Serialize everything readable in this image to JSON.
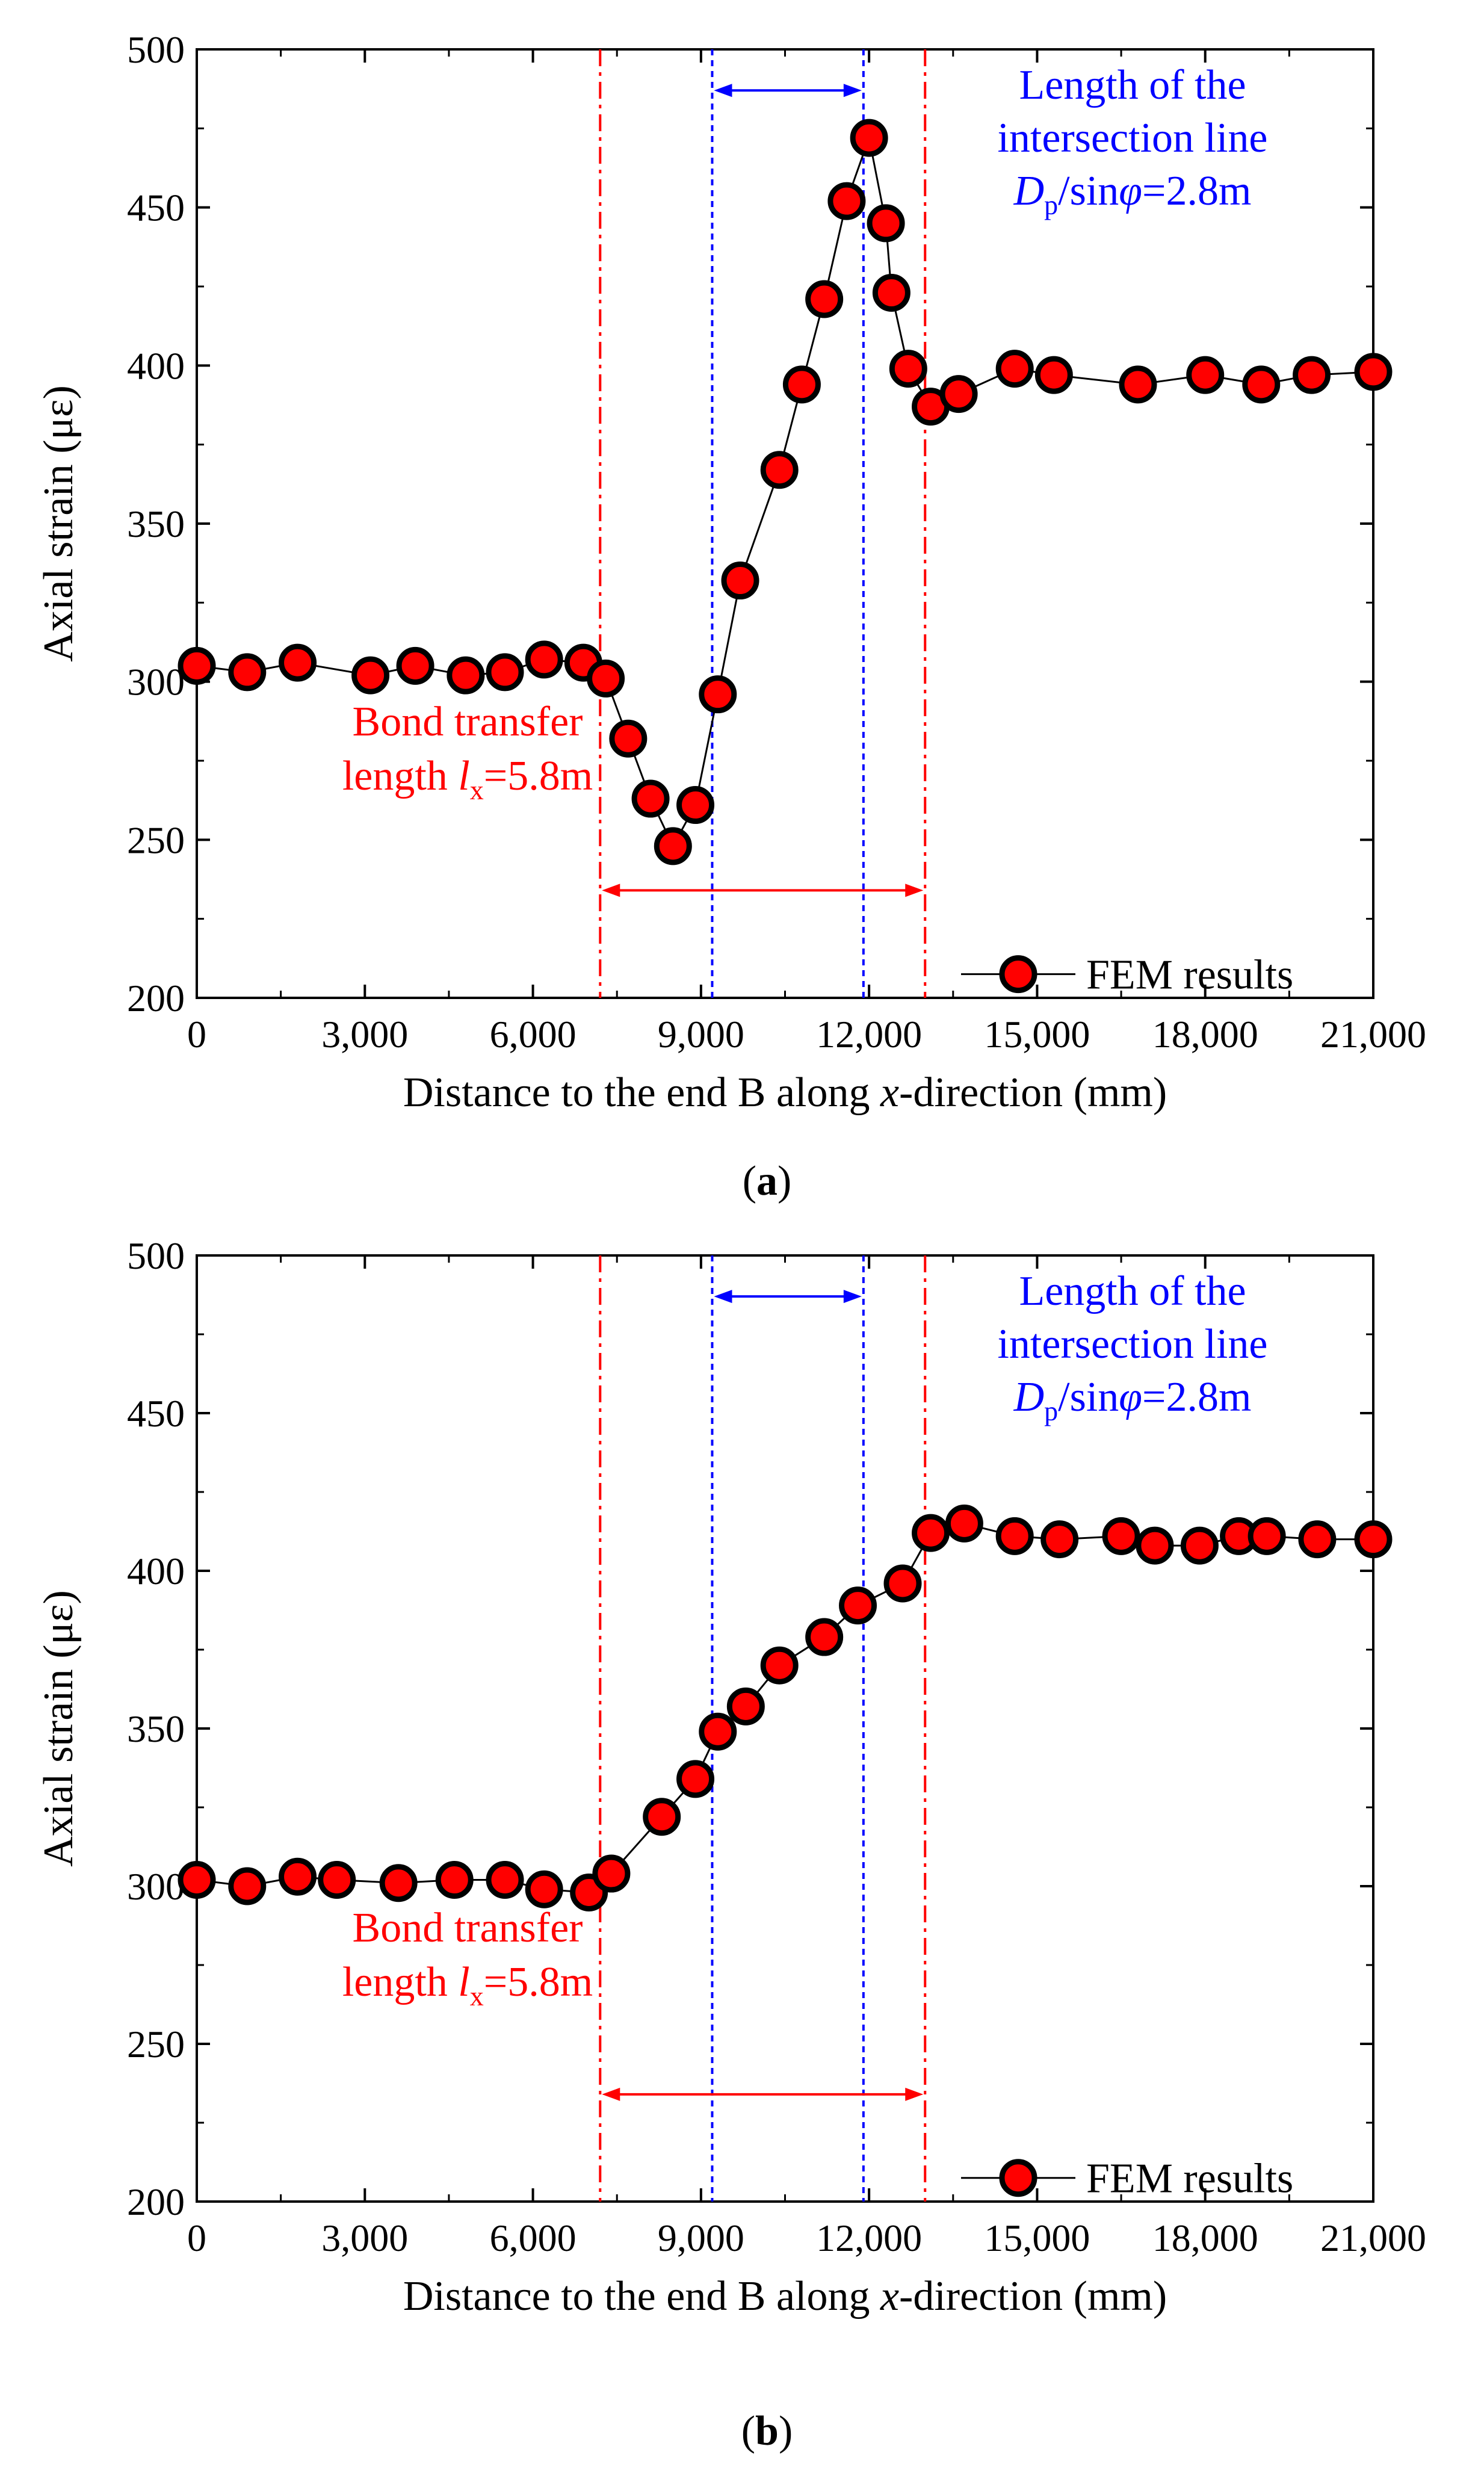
{
  "colors": {
    "marker": "#ff0000",
    "red_line": "#ff0000",
    "blue_line": "#0000ff",
    "axis": "#000000"
  },
  "chart_data": [
    {
      "type": "line",
      "panel": "a",
      "caption_open": "(",
      "caption_letter": "a",
      "caption_close": ")",
      "xlabel_pre": "Distance to the end B along ",
      "xlabel_var": "x",
      "xlabel_post": "-direction (mm)",
      "ylabel": "Axial strain (με)",
      "xlim": [
        0,
        21000
      ],
      "ylim": [
        200,
        500
      ],
      "xticks": [
        0,
        3000,
        6000,
        9000,
        12000,
        15000,
        18000,
        21000
      ],
      "xtick_labels": [
        "0",
        "3,000",
        "6,000",
        "9,000",
        "12,000",
        "15,000",
        "18,000",
        "21,000"
      ],
      "yticks": [
        200,
        250,
        300,
        350,
        400,
        450,
        500
      ],
      "ytick_labels": [
        "200",
        "250",
        "300",
        "350",
        "400",
        "450",
        "500"
      ],
      "red_lines_x": [
        7200,
        13000
      ],
      "blue_lines_x": [
        9200,
        11900
      ],
      "bond_label_line1": "Bond transfer",
      "bond_label_pre": "length ",
      "bond_label_var": "l",
      "bond_label_sub": "x",
      "bond_label_post": "=5.8m",
      "blue_label_line1": "Length of the",
      "blue_label_line2": "intersection line",
      "blue_label_var": "D",
      "blue_label_sub": "p",
      "blue_label_mid": "/sin",
      "blue_label_phi": "φ",
      "blue_label_post": "=2.8m",
      "legend": "FEM results",
      "series": [
        {
          "name": "FEM results",
          "x": [
            0,
            900,
            1800,
            3100,
            3900,
            4800,
            5500,
            6200,
            6900,
            7300,
            7700,
            8100,
            8500,
            8900,
            9300,
            9700,
            10400,
            10800,
            11200,
            11600,
            12000,
            12300,
            12400,
            12700,
            13100,
            13600,
            14600,
            15300,
            16800,
            18000,
            19000,
            19900,
            21000
          ],
          "y": [
            305,
            303,
            306,
            302,
            305,
            302,
            303,
            307,
            306,
            301,
            282,
            263,
            248,
            261,
            296,
            332,
            367,
            394,
            421,
            452,
            472,
            445,
            423,
            399,
            387,
            391,
            399,
            397,
            394,
            397,
            394,
            397,
            398
          ]
        }
      ]
    },
    {
      "type": "line",
      "panel": "b",
      "caption_open": "(",
      "caption_letter": "b",
      "caption_close": ")",
      "xlabel_pre": "Distance to the end B along ",
      "xlabel_var": "x",
      "xlabel_post": "-direction (mm)",
      "ylabel": "Axial strain (με)",
      "xlim": [
        0,
        21000
      ],
      "ylim": [
        200,
        500
      ],
      "xticks": [
        0,
        3000,
        6000,
        9000,
        12000,
        15000,
        18000,
        21000
      ],
      "xtick_labels": [
        "0",
        "3,000",
        "6,000",
        "9,000",
        "12,000",
        "15,000",
        "18,000",
        "21,000"
      ],
      "yticks": [
        200,
        250,
        300,
        350,
        400,
        450,
        500
      ],
      "ytick_labels": [
        "200",
        "250",
        "300",
        "350",
        "400",
        "450",
        "500"
      ],
      "red_lines_x": [
        7200,
        13000
      ],
      "blue_lines_x": [
        9200,
        11900
      ],
      "bond_label_line1": "Bond transfer",
      "bond_label_pre": "length ",
      "bond_label_var": "l",
      "bond_label_sub": "x",
      "bond_label_post": "=5.8m",
      "blue_label_line1": "Length of the",
      "blue_label_line2": "intersection line",
      "blue_label_var": "D",
      "blue_label_sub": "p",
      "blue_label_mid": "/sin",
      "blue_label_phi": "φ",
      "blue_label_post": "=2.8m",
      "legend": "FEM results",
      "series": [
        {
          "name": "FEM results",
          "x": [
            0,
            900,
            1800,
            2500,
            3600,
            4600,
            5500,
            6200,
            7000,
            7400,
            8300,
            8900,
            9300,
            9800,
            10400,
            11200,
            11800,
            12600,
            13100,
            13700,
            14600,
            15400,
            16500,
            17100,
            17900,
            18600,
            19100,
            20000,
            21000
          ],
          "y": [
            302,
            300,
            303,
            302,
            301,
            302,
            302,
            299,
            298,
            304,
            322,
            334,
            349,
            357,
            370,
            379,
            389,
            396,
            412,
            415,
            411,
            410,
            411,
            408,
            408,
            411,
            411,
            410,
            410
          ]
        }
      ]
    }
  ]
}
